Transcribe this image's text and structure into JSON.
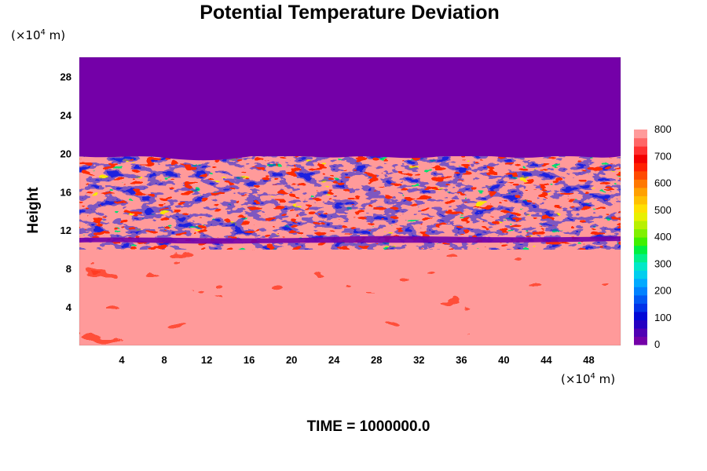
{
  "chart_data": {
    "type": "heatmap",
    "title": "Potential Temperature Deviation",
    "ylabel": "Height",
    "x_unit": {
      "prefix": "(×10",
      "exp": "4",
      "suffix": " m)"
    },
    "y_unit": {
      "prefix": "(×10",
      "exp": "4",
      "suffix": " m)"
    },
    "xlim": [
      0,
      51
    ],
    "ylim": [
      0,
      30
    ],
    "x_ticks": [
      4,
      8,
      12,
      16,
      20,
      24,
      28,
      32,
      36,
      40,
      44,
      48
    ],
    "y_ticks": [
      4,
      8,
      12,
      16,
      20,
      24,
      28
    ],
    "colorbar": {
      "min": 0,
      "max": 800,
      "ticks": [
        0,
        100,
        200,
        300,
        400,
        500,
        600,
        700,
        800
      ],
      "colors": [
        "#7400a8",
        "#5000b4",
        "#2600c2",
        "#0008d6",
        "#0032e8",
        "#0058f4",
        "#0082ff",
        "#00aaff",
        "#00ceee",
        "#00e8c8",
        "#00f08a",
        "#00f040",
        "#40f000",
        "#80f000",
        "#b8f000",
        "#e8f000",
        "#ffe000",
        "#ffc000",
        "#ffa000",
        "#ff7800",
        "#ff4a00",
        "#ff2000",
        "#f20000",
        "#ff3030",
        "#ff6666",
        "#ff9a9a"
      ]
    },
    "regions": {
      "upper_band": {
        "y_from": 20,
        "y_to": 30,
        "value": 0,
        "color": "#7400a8"
      },
      "turbulent_band": {
        "y_from": 10,
        "y_to": 20,
        "description_value_range": [
          0,
          800
        ]
      },
      "lower_band": {
        "y_from": 0,
        "y_to": 10,
        "value": 800,
        "color": "#ff9a9a"
      }
    },
    "time_label": "TIME = 1000000.0"
  }
}
